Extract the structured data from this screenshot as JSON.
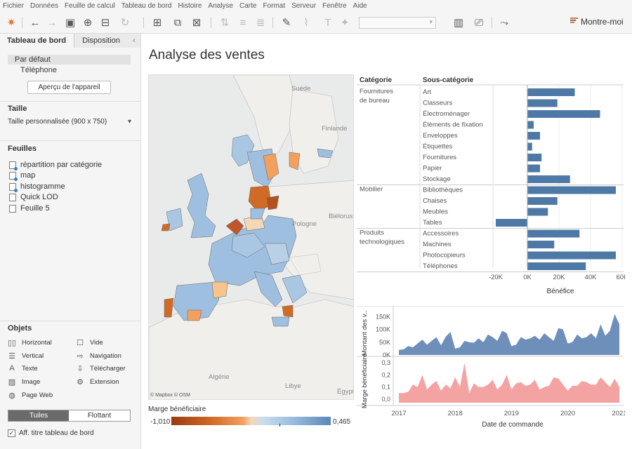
{
  "menu": [
    "Fichier",
    "Données",
    "Feuille de calcul",
    "Tableau de bord",
    "Histoire",
    "Analyse",
    "Carte",
    "Format",
    "Serveur",
    "Fenêtre",
    "Aide"
  ],
  "toolbar": {
    "show_me": "Montre-moi"
  },
  "left_pane": {
    "tabs": [
      "Tableau de bord",
      "Disposition"
    ],
    "devices": [
      "Par défaut",
      "Téléphone"
    ],
    "preview_button": "Aperçu de l'appareil",
    "size_title": "Taille",
    "size_value": "Taille personnalisée (900 x 750)",
    "sheets_title": "Feuilles",
    "sheets": [
      "répartition par catégorie",
      "map",
      "histogramme",
      "Quick LOD",
      "Feuille 5"
    ],
    "objects_title": "Objets",
    "objects": [
      "Horizontal",
      "Vide",
      "Vertical",
      "Navigation",
      "Texte",
      "Télécharger",
      "Image",
      "Extension",
      "Page Web"
    ],
    "tiled": "Tuiles",
    "floating": "Flottant",
    "show_title": "Aff. titre tableau de bord"
  },
  "dashboard": {
    "title": "Analyse des ventes",
    "map_labels": [
      "Suède",
      "Finlande",
      "Biélorussie",
      "Pologne",
      "Algérie",
      "Libye",
      "Égypt"
    ],
    "map_attribution": "© Mapbox © OSM",
    "legend_title": "Marge bénéficiaire",
    "legend_min": "-1,010",
    "legend_max": "0,465"
  },
  "chart_data": [
    {
      "type": "bar",
      "orientation": "horizontal",
      "columns": [
        "Catégorie",
        "Sous-catégorie"
      ],
      "groups": [
        {
          "category": "Fournitures de bureau",
          "items": [
            {
              "name": "Art",
              "value": 30000
            },
            {
              "name": "Classeurs",
              "value": 19000
            },
            {
              "name": "Électroménager",
              "value": 46000
            },
            {
              "name": "Éléments de fixation",
              "value": 4000
            },
            {
              "name": "Enveloppes",
              "value": 8000
            },
            {
              "name": "Étiquettes",
              "value": 3000
            },
            {
              "name": "Fournitures",
              "value": 9000
            },
            {
              "name": "Papier",
              "value": 8000
            },
            {
              "name": "Stockage",
              "value": 27000
            }
          ]
        },
        {
          "category": "Mobilier",
          "items": [
            {
              "name": "Bibliothèques",
              "value": 56000
            },
            {
              "name": "Chaises",
              "value": 19000
            },
            {
              "name": "Meubles",
              "value": 13000
            },
            {
              "name": "Tables",
              "value": -20000
            }
          ]
        },
        {
          "category": "Produits technologiques",
          "items": [
            {
              "name": "Accessoires",
              "value": 33000
            },
            {
              "name": "Machines",
              "value": 17000
            },
            {
              "name": "Photocopieurs",
              "value": 56000
            },
            {
              "name": "Téléphones",
              "value": 37000
            }
          ]
        }
      ],
      "xlabel": "Bénéfice",
      "xticks": [
        "-20K",
        "0K",
        "20K",
        "40K",
        "60K"
      ],
      "xlim": [
        -20000,
        60000
      ],
      "color": "#4e79a7"
    },
    {
      "type": "area",
      "xlabel": "Date de commande",
      "xticks": [
        "2017",
        "2018",
        "2019",
        "2020",
        "2021"
      ],
      "x": [
        "2017-01",
        "2017-02",
        "2017-03",
        "2017-04",
        "2017-05",
        "2017-06",
        "2017-07",
        "2017-08",
        "2017-09",
        "2017-10",
        "2017-11",
        "2017-12",
        "2018-01",
        "2018-02",
        "2018-03",
        "2018-04",
        "2018-05",
        "2018-06",
        "2018-07",
        "2018-08",
        "2018-09",
        "2018-10",
        "2018-11",
        "2018-12",
        "2019-01",
        "2019-02",
        "2019-03",
        "2019-04",
        "2019-05",
        "2019-06",
        "2019-07",
        "2019-08",
        "2019-09",
        "2019-10",
        "2019-11",
        "2019-12",
        "2020-01",
        "2020-02",
        "2020-03",
        "2020-04",
        "2020-05",
        "2020-06",
        "2020-07",
        "2020-08",
        "2020-09",
        "2020-10",
        "2020-11",
        "2020-12"
      ],
      "series": [
        {
          "name": "Montant des v..",
          "color": "#6e8fb9",
          "yticks": [
            "0K",
            "50K",
            "100K",
            "150K"
          ],
          "ylim": [
            0,
            170000
          ],
          "values": [
            20000,
            22000,
            35000,
            30000,
            45000,
            60000,
            40000,
            55000,
            70000,
            38000,
            72000,
            90000,
            25000,
            30000,
            55000,
            50000,
            48000,
            65000,
            50000,
            80000,
            70000,
            55000,
            95000,
            85000,
            35000,
            40000,
            70000,
            60000,
            65000,
            75000,
            60000,
            85000,
            70000,
            55000,
            105000,
            100000,
            45000,
            50000,
            80000,
            65000,
            70000,
            85000,
            65000,
            120000,
            75000,
            95000,
            160000,
            120000
          ]
        },
        {
          "name": "Marge bénéficiaire",
          "color": "#f4a3a3",
          "yticks": [
            "0,0",
            "0,1",
            "0,2",
            "0,3"
          ],
          "ylim": [
            -0.03,
            0.33
          ],
          "values": [
            0.05,
            0.05,
            0.06,
            0.12,
            0.1,
            0.2,
            0.08,
            0.12,
            0.15,
            0.07,
            0.12,
            0.09,
            0.18,
            0.1,
            0.3,
            0.05,
            0.13,
            0.1,
            0.1,
            0.12,
            0.16,
            0.08,
            0.12,
            0.2,
            0.08,
            0.13,
            0.14,
            0.11,
            0.12,
            0.16,
            0.08,
            0.1,
            0.11,
            0.18,
            0.17,
            0.12,
            0.07,
            0.11,
            0.11,
            0.15,
            0.14,
            0.12,
            0.12,
            0.18,
            0.14,
            0.1,
            0.17,
            0.1
          ]
        }
      ]
    }
  ]
}
